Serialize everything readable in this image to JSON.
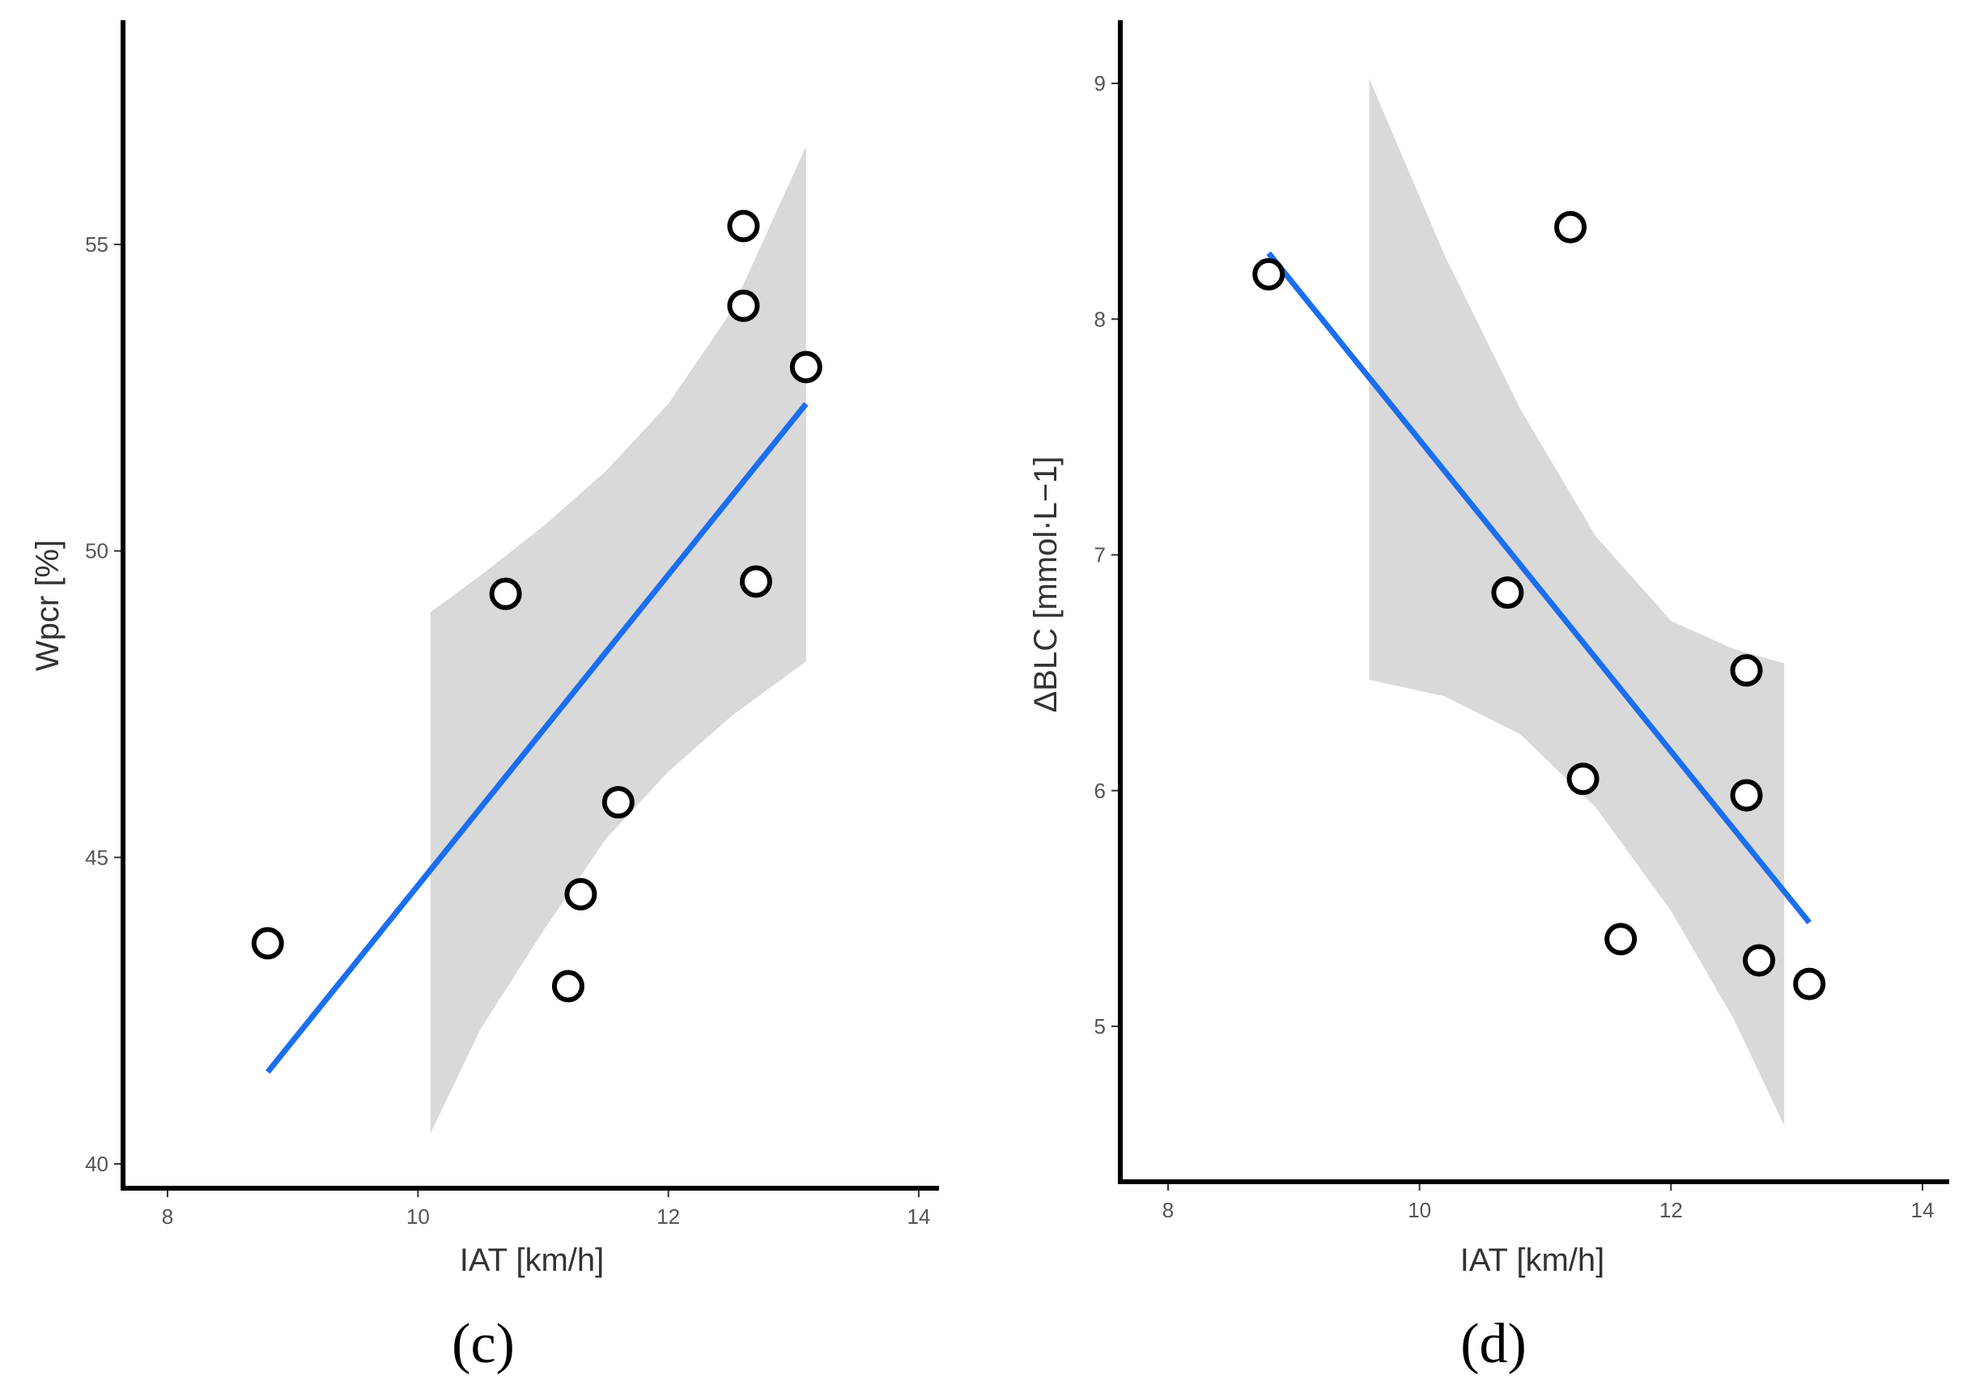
{
  "chart_data": [
    {
      "type": "scatter",
      "panel_label": "(c)",
      "xlabel": "IAT [km/h]",
      "ylabel": "Wpcr [%]",
      "xlim": [
        7.6,
        14.2
      ],
      "ylim": [
        39.6,
        58.0
      ],
      "xticks": [
        8,
        10,
        12,
        14
      ],
      "yticks": [
        40,
        45,
        50,
        55
      ],
      "points": [
        {
          "x": 8.8,
          "y": 43.6
        },
        {
          "x": 10.7,
          "y": 49.3
        },
        {
          "x": 11.2,
          "y": 42.9
        },
        {
          "x": 11.3,
          "y": 44.4
        },
        {
          "x": 11.6,
          "y": 45.9
        },
        {
          "x": 12.6,
          "y": 55.3
        },
        {
          "x": 12.6,
          "y": 54.0
        },
        {
          "x": 12.7,
          "y": 49.5
        },
        {
          "x": 13.1,
          "y": 53.0
        }
      ],
      "fit_line": {
        "x": [
          8.8,
          13.1
        ],
        "y": [
          41.5,
          52.4
        ]
      },
      "confidence_band": {
        "x": [
          10.1,
          10.5,
          11.0,
          11.5,
          12.0,
          12.5,
          13.1
        ],
        "upper": [
          49.0,
          49.6,
          50.4,
          51.3,
          52.4,
          53.9,
          56.6
        ],
        "lower": [
          40.5,
          42.2,
          43.8,
          45.3,
          46.4,
          47.3,
          48.2
        ]
      },
      "colors": {
        "line": "#1a6ef0",
        "band": "#d9d9d9",
        "point_fill": "#ffffff",
        "point_stroke": "#000000"
      }
    },
    {
      "type": "scatter",
      "panel_label": "(d)",
      "xlabel": "IAT [km/h]",
      "ylabel": "ΔBLC [mmol·L−1]",
      "xlim": [
        7.6,
        14.2
      ],
      "ylim": [
        4.33,
        9.25
      ],
      "xticks": [
        8,
        10,
        12,
        14
      ],
      "yticks": [
        5,
        6,
        7,
        8,
        9
      ],
      "points": [
        {
          "x": 8.8,
          "y": 8.19
        },
        {
          "x": 10.7,
          "y": 6.84
        },
        {
          "x": 11.2,
          "y": 8.39
        },
        {
          "x": 11.3,
          "y": 6.05
        },
        {
          "x": 11.6,
          "y": 5.37
        },
        {
          "x": 12.6,
          "y": 6.51
        },
        {
          "x": 12.6,
          "y": 5.98
        },
        {
          "x": 12.7,
          "y": 5.28
        },
        {
          "x": 13.1,
          "y": 5.18
        }
      ],
      "fit_line": {
        "x": [
          8.8,
          13.1
        ],
        "y": [
          8.28,
          5.44
        ]
      },
      "confidence_band": {
        "x": [
          9.6,
          10.2,
          10.8,
          11.4,
          12.0,
          12.5,
          12.9
        ],
        "upper": [
          9.02,
          8.27,
          7.62,
          7.08,
          6.72,
          6.6,
          6.54
        ],
        "lower": [
          6.47,
          6.4,
          6.24,
          5.93,
          5.49,
          5.03,
          4.58
        ]
      },
      "colors": {
        "line": "#1a6ef0",
        "band": "#d9d9d9",
        "point_fill": "#ffffff",
        "point_stroke": "#000000"
      }
    }
  ]
}
